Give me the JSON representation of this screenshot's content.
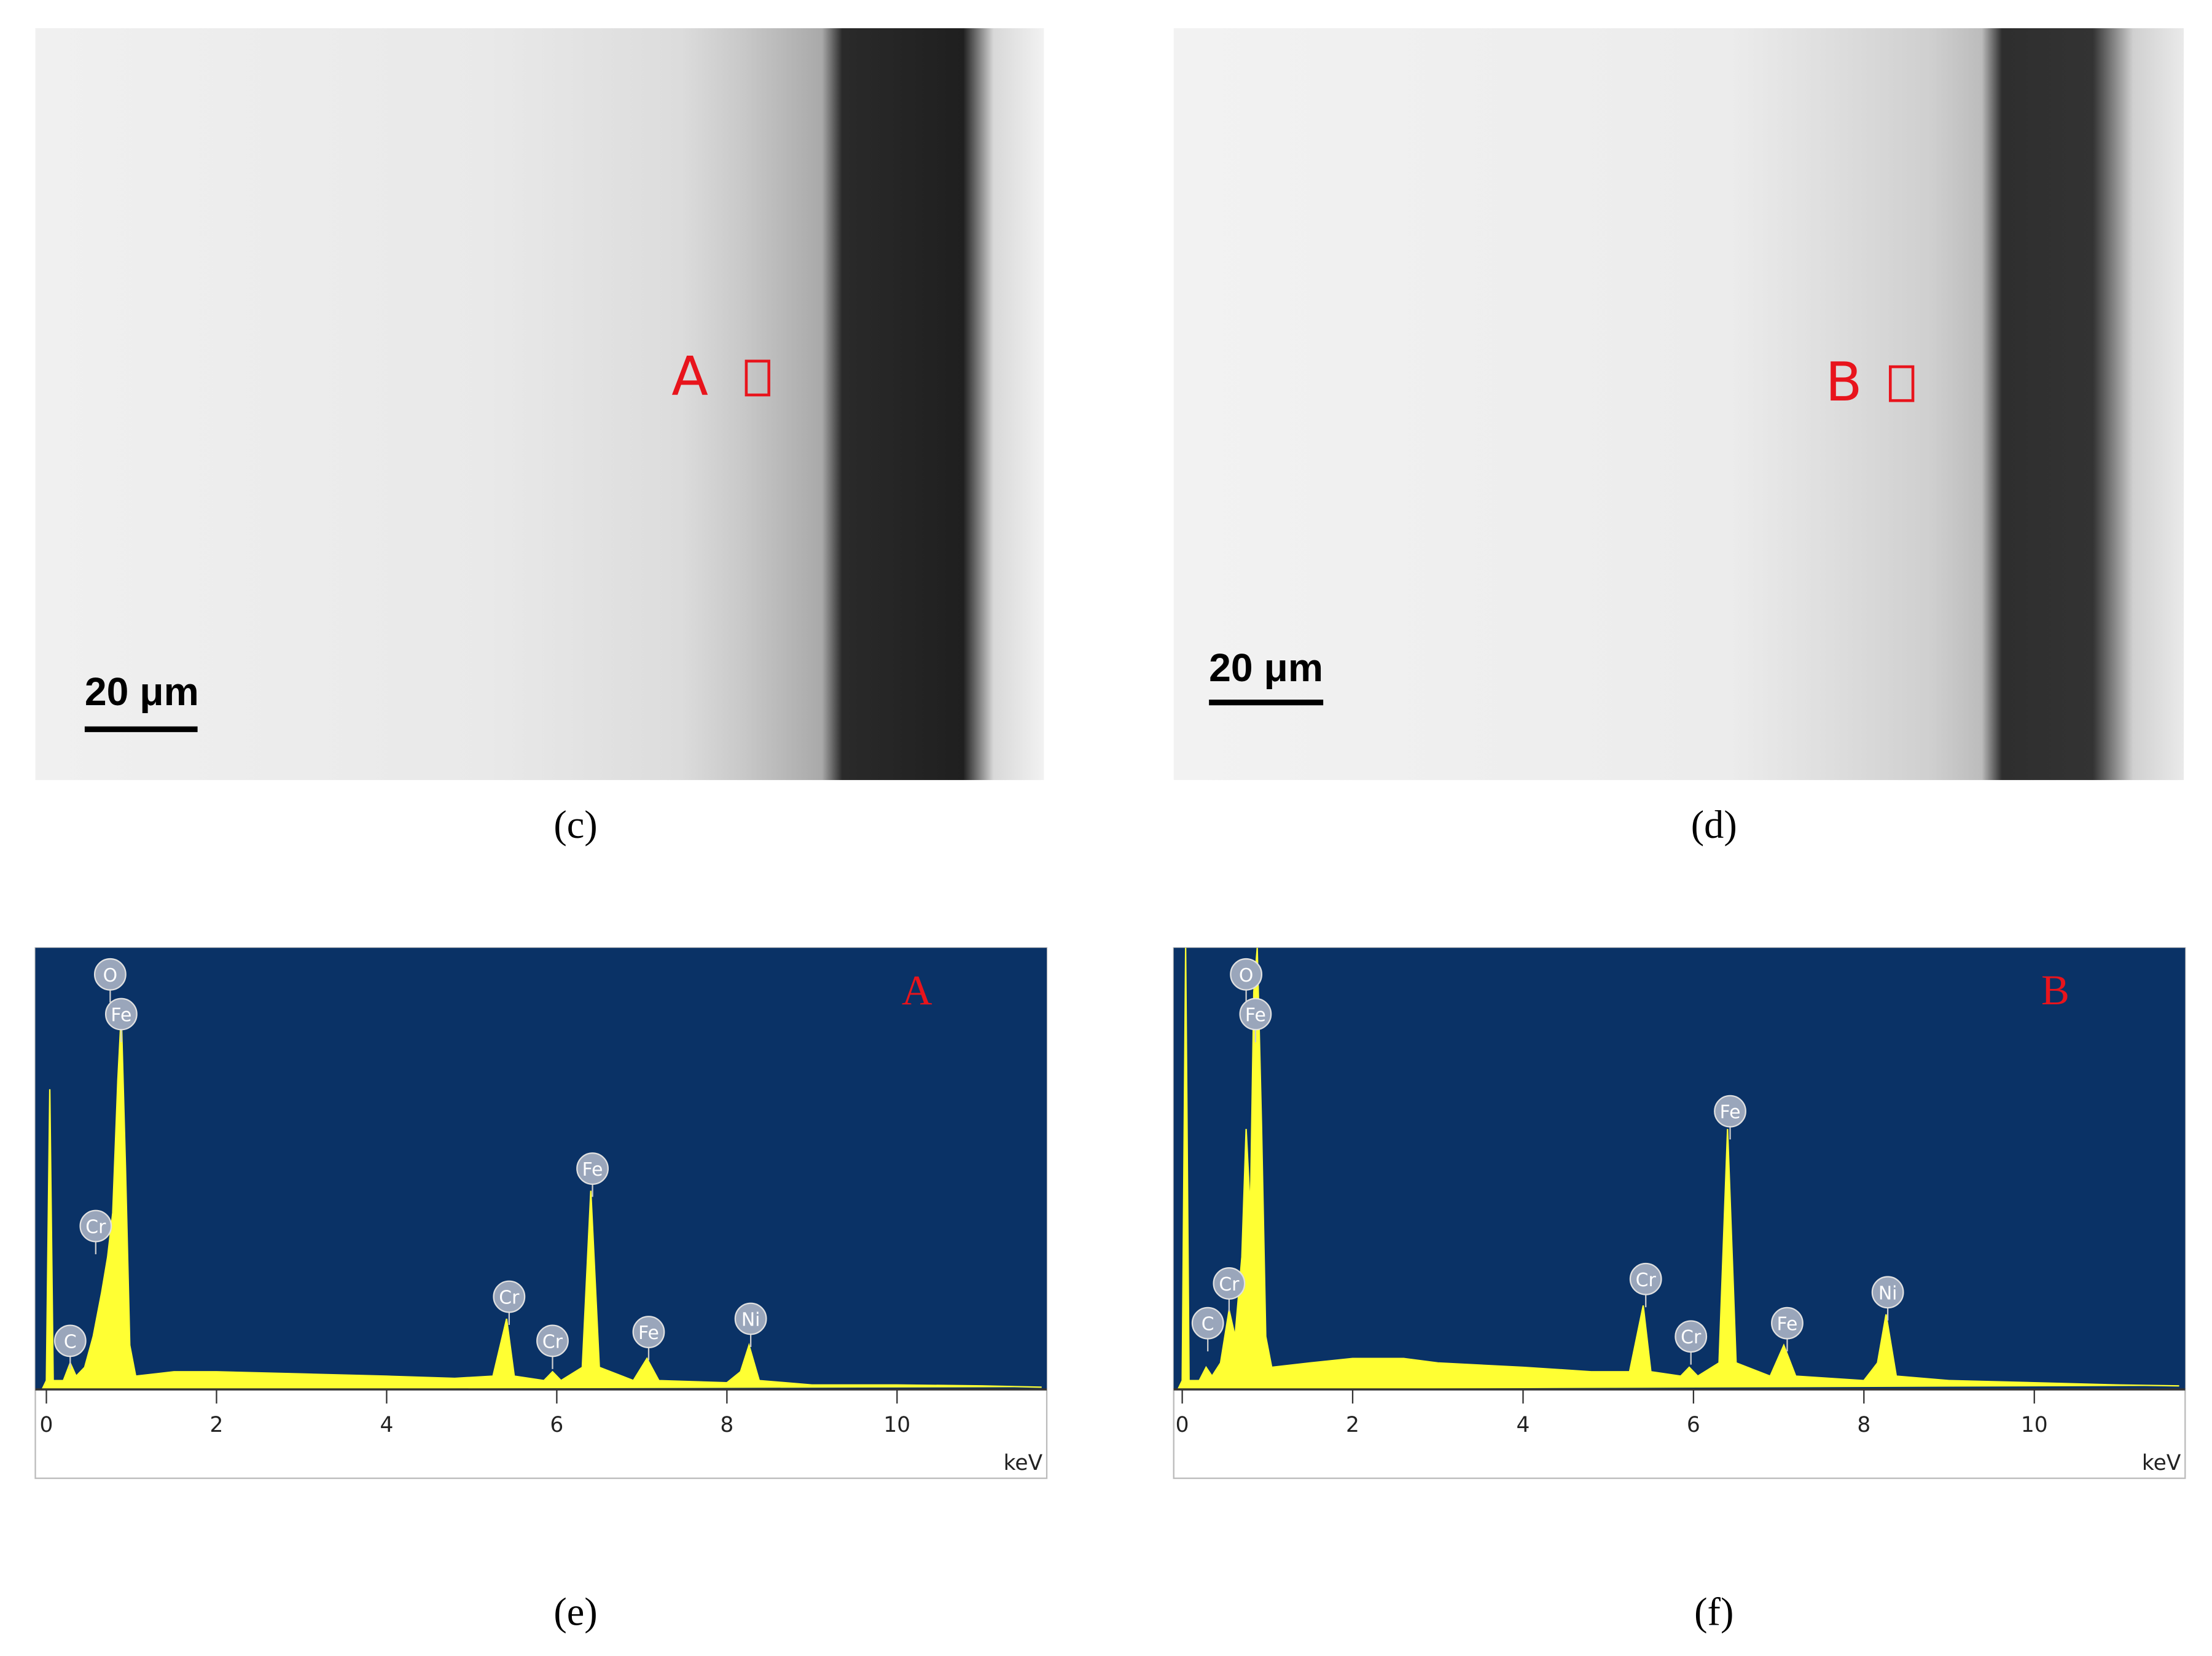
{
  "panels": [
    {
      "caption": "(c)",
      "scale_bar": "20 μm",
      "marker": "A"
    },
    {
      "caption": "(d)",
      "scale_bar": "20 μm",
      "marker": "B"
    }
  ],
  "chart_data": [
    {
      "type": "area",
      "caption": "(e)",
      "label": "A",
      "xlabel": "keV",
      "color": "#ffff33",
      "xlim": [
        -0.13,
        11.76
      ],
      "ylim": [
        0,
        100
      ],
      "xticks": [
        0,
        2,
        4,
        6,
        8,
        10
      ],
      "x": [
        -0.05,
        0.0,
        0.04,
        0.08,
        0.2,
        0.28,
        0.35,
        0.45,
        0.55,
        0.65,
        0.72,
        0.78,
        0.84,
        0.88,
        0.93,
        0.98,
        1.05,
        1.5,
        2.0,
        3.0,
        4.0,
        4.8,
        5.25,
        5.41,
        5.5,
        5.85,
        5.95,
        6.05,
        6.3,
        6.4,
        6.5,
        6.9,
        7.06,
        7.2,
        8.0,
        8.16,
        8.26,
        8.38,
        9.0,
        10.0,
        11.0,
        11.7
      ],
      "values": [
        0,
        2,
        68,
        2,
        2,
        6,
        3,
        5,
        12,
        22,
        30,
        40,
        70,
        85,
        50,
        10,
        3,
        4,
        4,
        3.5,
        3,
        2.5,
        3,
        16,
        3,
        2,
        4,
        2,
        5,
        45,
        5,
        2,
        7,
        2,
        1.5,
        4,
        10,
        2,
        1,
        1,
        0.8,
        0.5
      ],
      "annotations": [
        {
          "text": "O",
          "x": 0.75,
          "y": 94
        },
        {
          "text": "Fe",
          "x": 0.88,
          "y": 85
        },
        {
          "text": "Cr",
          "x": 0.58,
          "y": 37
        },
        {
          "text": "C",
          "x": 0.28,
          "y": 11
        },
        {
          "text": "Cr",
          "x": 5.44,
          "y": 21
        },
        {
          "text": "Cr",
          "x": 5.95,
          "y": 11
        },
        {
          "text": "Fe",
          "x": 6.42,
          "y": 50
        },
        {
          "text": "Fe",
          "x": 7.08,
          "y": 13
        },
        {
          "text": "Ni",
          "x": 8.28,
          "y": 16
        }
      ]
    },
    {
      "type": "area",
      "caption": "(f)",
      "label": "B",
      "xlabel": "keV",
      "color": "#ffff33",
      "xlim": [
        -0.1,
        11.77
      ],
      "ylim": [
        0,
        100
      ],
      "xticks": [
        0,
        2,
        4,
        6,
        8,
        10
      ],
      "x": [
        -0.05,
        0.0,
        0.04,
        0.08,
        0.2,
        0.28,
        0.35,
        0.45,
        0.55,
        0.62,
        0.7,
        0.75,
        0.8,
        0.84,
        0.88,
        0.93,
        0.98,
        1.05,
        1.5,
        2.0,
        2.6,
        3.0,
        4.0,
        4.8,
        5.25,
        5.41,
        5.5,
        5.85,
        5.95,
        6.05,
        6.3,
        6.4,
        6.5,
        6.9,
        7.06,
        7.2,
        8.0,
        8.16,
        8.26,
        8.38,
        9.0,
        10.0,
        11.0,
        11.7
      ],
      "values": [
        0,
        2,
        100,
        2,
        2,
        5,
        3,
        6,
        18,
        12,
        30,
        59,
        40,
        90,
        100,
        60,
        12,
        5,
        6,
        7,
        7,
        6,
        5,
        4,
        4,
        19,
        4,
        3,
        5,
        3,
        6,
        59,
        6,
        3,
        10,
        3,
        2,
        6,
        17,
        3,
        2,
        1.5,
        1,
        0.8
      ],
      "annotations": [
        {
          "text": "O",
          "x": 0.75,
          "y": 94
        },
        {
          "text": "Fe",
          "x": 0.86,
          "y": 85
        },
        {
          "text": "Cr",
          "x": 0.55,
          "y": 24
        },
        {
          "text": "C",
          "x": 0.3,
          "y": 15
        },
        {
          "text": "Cr",
          "x": 5.44,
          "y": 25
        },
        {
          "text": "Cr",
          "x": 5.97,
          "y": 12
        },
        {
          "text": "Fe",
          "x": 6.43,
          "y": 63
        },
        {
          "text": "Fe",
          "x": 7.1,
          "y": 15
        },
        {
          "text": "Ni",
          "x": 8.28,
          "y": 22
        }
      ]
    }
  ]
}
